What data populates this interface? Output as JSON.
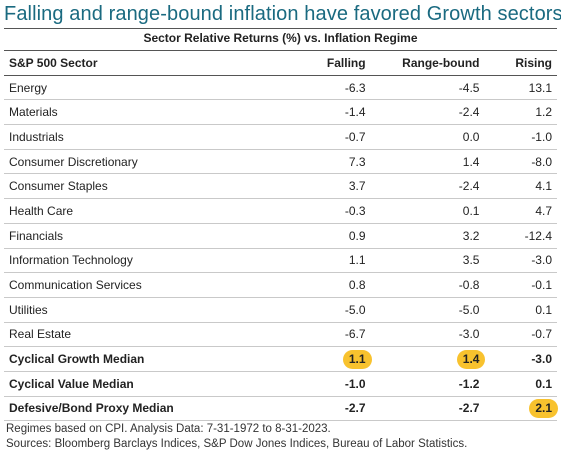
{
  "title": "Falling and range-bound inflation have favored Growth sectors",
  "chart_data": {
    "type": "table",
    "title": "Sector Relative Returns (%) vs. Inflation Regime",
    "columns": [
      "S&P 500 Sector",
      "Falling",
      "Range-bound",
      "Rising"
    ],
    "rows": [
      {
        "label": "Energy",
        "values": [
          "-6.3",
          "-4.5",
          "13.1"
        ]
      },
      {
        "label": "Materials",
        "values": [
          "-1.4",
          "-2.4",
          "1.2"
        ]
      },
      {
        "label": "Industrials",
        "values": [
          "-0.7",
          "0.0",
          "-1.0"
        ]
      },
      {
        "label": "Consumer Discretionary",
        "values": [
          "7.3",
          "1.4",
          "-8.0"
        ]
      },
      {
        "label": "Consumer Staples",
        "values": [
          "3.7",
          "-2.4",
          "4.1"
        ]
      },
      {
        "label": "Health Care",
        "values": [
          "-0.3",
          "0.1",
          "4.7"
        ]
      },
      {
        "label": "Financials",
        "values": [
          "0.9",
          "3.2",
          "-12.4"
        ]
      },
      {
        "label": "Information Technology",
        "values": [
          "1.1",
          "3.5",
          "-3.0"
        ]
      },
      {
        "label": "Communication Services",
        "values": [
          "0.8",
          "-0.8",
          "-0.1"
        ]
      },
      {
        "label": "Utilities",
        "values": [
          "-5.0",
          "-5.0",
          "0.1"
        ]
      },
      {
        "label": "Real Estate",
        "values": [
          "-6.7",
          "-3.0",
          "-0.7"
        ]
      }
    ],
    "medians": [
      {
        "label": "Cyclical Growth Median",
        "values": [
          "1.1",
          "1.4",
          "-3.0"
        ],
        "highlight": [
          true,
          true,
          false
        ]
      },
      {
        "label": "Cyclical Value Median",
        "values": [
          "-1.0",
          "-1.2",
          "0.1"
        ],
        "highlight": [
          false,
          false,
          false
        ]
      },
      {
        "label": "Defesive/Bond Proxy Median",
        "values": [
          "-2.7",
          "-2.7",
          "2.1"
        ],
        "highlight": [
          false,
          false,
          true
        ]
      }
    ]
  },
  "colors": {
    "title": "#1a6a80",
    "highlight": "#f8c22e"
  },
  "notes": {
    "line1": "Regimes based on CPI. Analysis Data: 7-31-1972 to 8-31-2023.",
    "line2": "Sources: Bloomberg Barclays Indices, S&P Dow Jones Indices, Bureau of Labor Statistics."
  }
}
